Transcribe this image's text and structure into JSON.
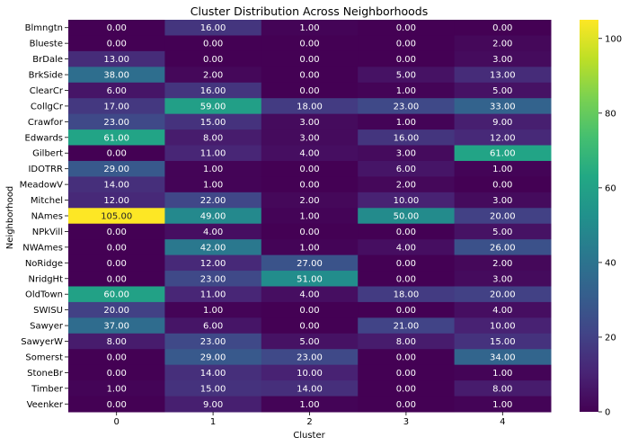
{
  "chart_data": {
    "type": "heatmap",
    "title": "Cluster Distribution Across Neighborhoods",
    "xlabel": "Cluster",
    "ylabel": "Neighborhood",
    "x_categories": [
      "0",
      "1",
      "2",
      "3",
      "4"
    ],
    "y_categories": [
      "Blmngtn",
      "Blueste",
      "BrDale",
      "BrkSide",
      "ClearCr",
      "CollgCr",
      "Crawfor",
      "Edwards",
      "Gilbert",
      "IDOTRR",
      "MeadowV",
      "Mitchel",
      "NAmes",
      "NPkVill",
      "NWAmes",
      "NoRidge",
      "NridgHt",
      "OldTown",
      "SWISU",
      "Sawyer",
      "SawyerW",
      "Somerst",
      "StoneBr",
      "Timber",
      "Veenker"
    ],
    "values": [
      [
        0,
        16,
        1,
        0,
        0
      ],
      [
        0,
        0,
        0,
        0,
        2
      ],
      [
        13,
        0,
        0,
        0,
        3
      ],
      [
        38,
        2,
        0,
        5,
        13
      ],
      [
        6,
        16,
        0,
        1,
        5
      ],
      [
        17,
        59,
        18,
        23,
        33
      ],
      [
        23,
        15,
        3,
        1,
        9
      ],
      [
        61,
        8,
        3,
        16,
        12
      ],
      [
        0,
        11,
        4,
        3,
        61
      ],
      [
        29,
        1,
        0,
        6,
        1
      ],
      [
        14,
        1,
        0,
        2,
        0
      ],
      [
        12,
        22,
        2,
        10,
        3
      ],
      [
        105,
        49,
        1,
        50,
        20
      ],
      [
        0,
        4,
        0,
        0,
        5
      ],
      [
        0,
        42,
        1,
        4,
        26
      ],
      [
        0,
        12,
        27,
        0,
        2
      ],
      [
        0,
        23,
        51,
        0,
        3
      ],
      [
        60,
        11,
        4,
        18,
        20
      ],
      [
        20,
        1,
        0,
        0,
        4
      ],
      [
        37,
        6,
        0,
        21,
        10
      ],
      [
        8,
        23,
        5,
        8,
        15
      ],
      [
        0,
        29,
        23,
        0,
        34
      ],
      [
        0,
        14,
        10,
        0,
        1
      ],
      [
        1,
        15,
        14,
        0,
        8
      ],
      [
        0,
        9,
        1,
        0,
        1
      ]
    ],
    "value_format_decimals": 2,
    "colormap": "viridis",
    "colorbar": {
      "range": [
        0,
        105
      ],
      "ticks": [
        "0",
        "20",
        "40",
        "60",
        "80",
        "100"
      ]
    }
  }
}
